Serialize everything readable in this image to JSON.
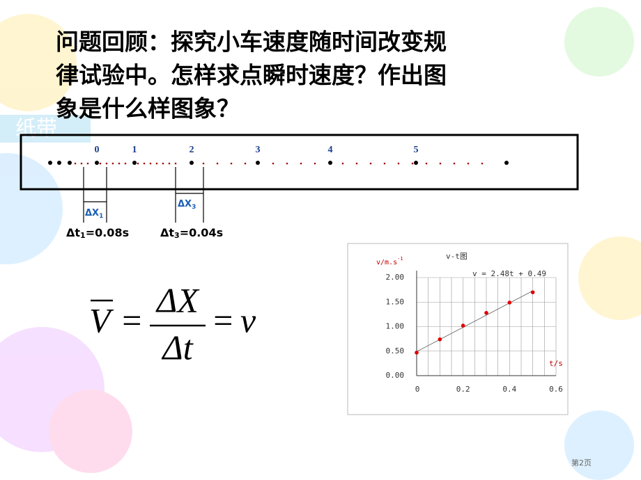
{
  "header": {
    "title_lines": [
      "问题回顾：探究小车速度随时间改变规",
      "律试验中。怎样求点瞬时速度？作出图",
      "象是什么样图象？"
    ]
  },
  "tape": {
    "label": "纸带",
    "numbers": [
      "0",
      "1",
      "2",
      "3",
      "4",
      "5"
    ],
    "dx1": {
      "symbol": "ΔX",
      "sub": "1"
    },
    "dx3": {
      "symbol": "ΔX",
      "sub": "3"
    },
    "dt1": {
      "symbol": "Δt",
      "sub": "1",
      "rest": "=0.08s"
    },
    "dt3": {
      "symbol": "Δt",
      "sub": "3",
      "rest": "=0.04s"
    }
  },
  "formula": {
    "lhs": "V",
    "equals": "=",
    "numerator": "ΔX",
    "denominator": "Δt",
    "rhs": "v"
  },
  "chart_data": {
    "type": "scatter",
    "title": "v-t图",
    "y_label": "v/m.s",
    "y_label_sup": "-1",
    "x_label": "t/s",
    "x": [
      0,
      0.1,
      0.2,
      0.3,
      0.4,
      0.5
    ],
    "values": [
      0.47,
      0.74,
      1.02,
      1.28,
      1.49,
      1.7
    ],
    "color": "#e00000",
    "trend": {
      "label": "v = 2.48t + 0.49",
      "slope": 2.48,
      "intercept": 0.49
    },
    "xlim": [
      0,
      0.6
    ],
    "xticks": [
      0,
      0.2,
      0.4,
      0.6
    ],
    "ylim": [
      0,
      2
    ],
    "yticks": [
      {
        "value": 0,
        "label": "0.00"
      },
      {
        "value": 0.5,
        "label": "0.50"
      },
      {
        "value": 1,
        "label": "1.00"
      },
      {
        "value": 1.5,
        "label": "1.50"
      },
      {
        "value": 2,
        "label": "2.00"
      }
    ],
    "grid": true
  },
  "footer": {
    "page": "第2页"
  }
}
